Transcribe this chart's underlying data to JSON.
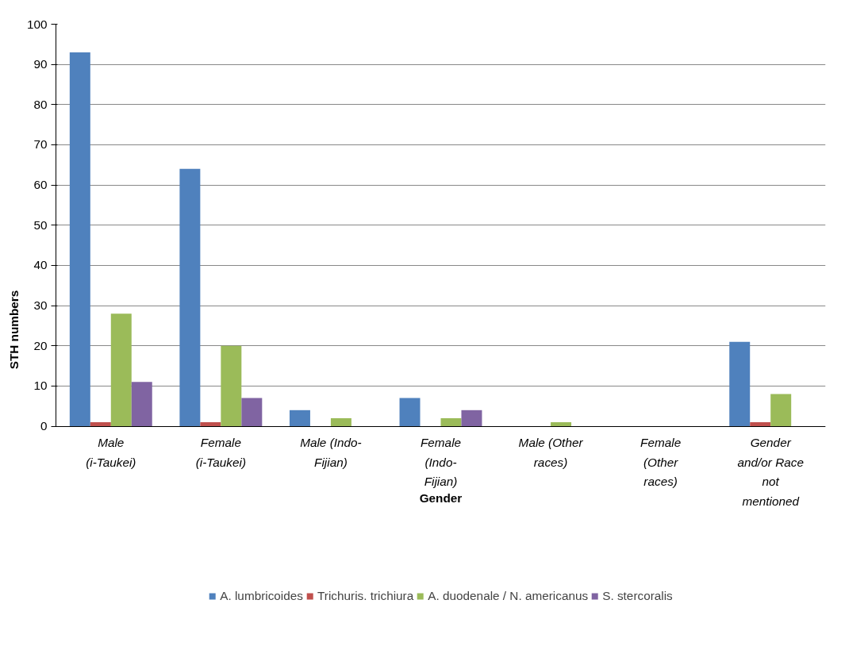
{
  "chart_data": {
    "type": "bar",
    "xlabel": "Gender",
    "ylabel": "STH numbers",
    "categories": [
      "Male (i-Taukei)",
      "Female (i-Taukei)",
      "Male (Indo-Fijian)",
      "Female (Indo-Fijian)",
      "Male (Other races)",
      "Female (Other races)",
      "Gender and/or Race not mentioned"
    ],
    "series": [
      {
        "name": "A. lumbricoides",
        "color": "#4f81bd",
        "values": [
          93,
          64,
          4,
          7,
          0,
          0,
          21
        ]
      },
      {
        "name": "Trichuris. trichiura",
        "color": "#c0504d",
        "values": [
          1,
          1,
          0,
          0,
          0,
          0,
          1
        ]
      },
      {
        "name": "A. duodenale / N. americanus",
        "color": "#9bbb59",
        "values": [
          28,
          20,
          2,
          2,
          1,
          0,
          8
        ]
      },
      {
        "name": "S. stercoralis",
        "color": "#8064a2",
        "values": [
          11,
          7,
          0,
          4,
          0,
          0,
          0
        ]
      }
    ],
    "ylim": [
      0,
      100
    ],
    "yticks": [
      0,
      10,
      20,
      30,
      40,
      50,
      60,
      70,
      80,
      90,
      100
    ],
    "grid": "y",
    "legend": "bottom"
  }
}
